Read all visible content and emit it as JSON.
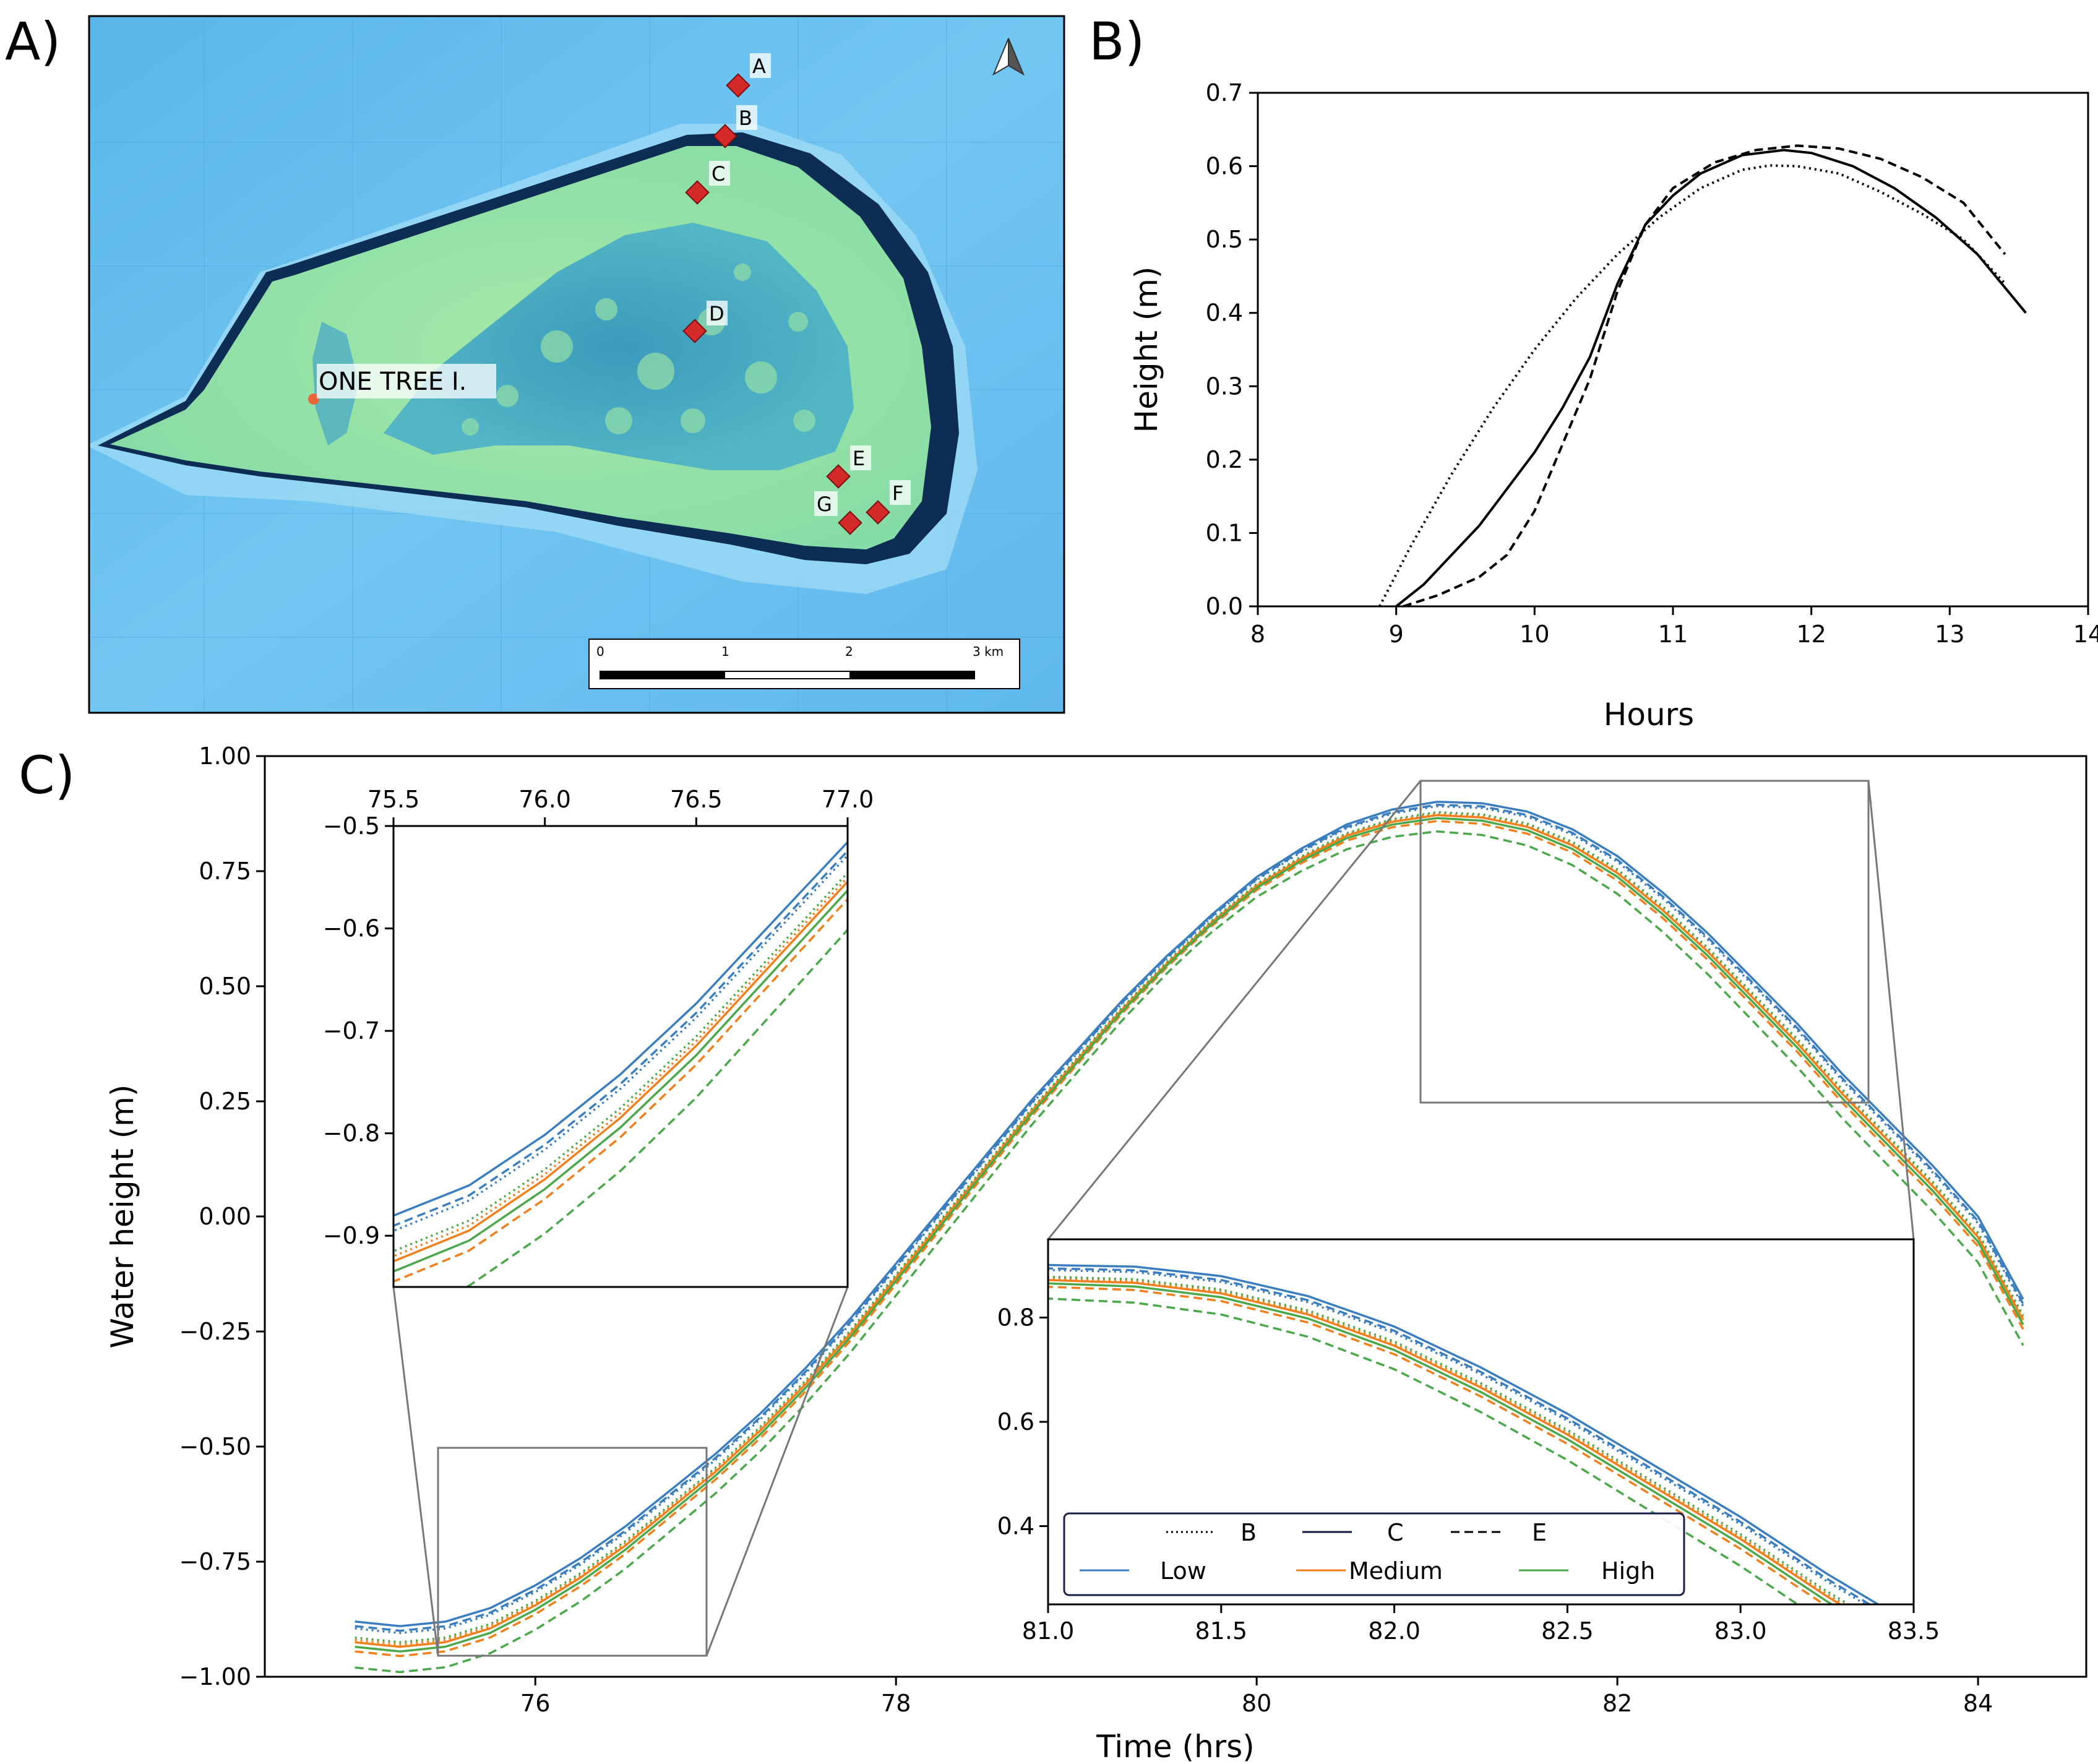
{
  "panel_labels": {
    "a": "A)",
    "b": "B)",
    "c": "C)"
  },
  "map": {
    "island_label": "ONE TREE I.",
    "sites": [
      "A",
      "B",
      "C",
      "D",
      "E",
      "F",
      "G"
    ],
    "north_arrow": "north-arrow-icon",
    "scale_bar": {
      "ticks": [
        "0",
        "1",
        "2",
        "3 km"
      ]
    },
    "colors": {
      "ocean": "#6ec3f0",
      "reef_flat": "#8fe0a0",
      "lagoon": "#3aa0c8",
      "reef_edge": "#0d2d55",
      "site_marker": "#d42a2a",
      "island": "#e8663a"
    }
  },
  "chart_data": [
    {
      "id": "B",
      "type": "line",
      "xlabel": "Hours",
      "ylabel": "Height (m)",
      "xlim": [
        8,
        14
      ],
      "ylim": [
        0,
        0.7
      ],
      "xticks": [
        "8",
        "9",
        "10",
        "11",
        "12",
        "13",
        "14"
      ],
      "yticks": [
        "0.0",
        "0.1",
        "0.2",
        "0.3",
        "0.4",
        "0.5",
        "0.6",
        "0.7"
      ],
      "series": [
        {
          "style": "solid",
          "x": [
            9.0,
            9.2,
            9.4,
            9.6,
            9.8,
            10.0,
            10.2,
            10.4,
            10.6,
            10.8,
            11.0,
            11.2,
            11.5,
            11.8,
            12.0,
            12.3,
            12.6,
            12.9,
            13.2,
            13.55
          ],
          "y": [
            0.0,
            0.03,
            0.07,
            0.11,
            0.16,
            0.21,
            0.27,
            0.34,
            0.44,
            0.52,
            0.56,
            0.59,
            0.615,
            0.622,
            0.618,
            0.6,
            0.57,
            0.53,
            0.48,
            0.4
          ]
        },
        {
          "style": "dashed",
          "x": [
            9.05,
            9.3,
            9.6,
            9.8,
            10.0,
            10.2,
            10.4,
            10.6,
            10.8,
            11.0,
            11.3,
            11.6,
            11.9,
            12.2,
            12.5,
            12.8,
            13.1,
            13.4
          ],
          "y": [
            0.0,
            0.015,
            0.04,
            0.07,
            0.13,
            0.22,
            0.31,
            0.43,
            0.52,
            0.57,
            0.605,
            0.622,
            0.628,
            0.624,
            0.61,
            0.585,
            0.55,
            0.48
          ]
        },
        {
          "style": "dotted",
          "x": [
            8.88,
            9.1,
            9.4,
            9.7,
            10.0,
            10.3,
            10.6,
            10.9,
            11.2,
            11.5,
            11.7,
            11.9,
            12.2,
            12.5,
            12.8,
            13.1,
            13.4
          ],
          "y": [
            0.0,
            0.08,
            0.18,
            0.27,
            0.35,
            0.42,
            0.48,
            0.53,
            0.57,
            0.595,
            0.601,
            0.6,
            0.59,
            0.565,
            0.535,
            0.5,
            0.44
          ]
        }
      ]
    },
    {
      "id": "C",
      "type": "line",
      "xlabel": "Time (hrs)",
      "ylabel": "Water height (m)",
      "xlim": [
        74.5,
        84.6
      ],
      "ylim": [
        -1.0,
        1.0
      ],
      "xticks": [
        "76",
        "78",
        "80",
        "82",
        "84"
      ],
      "yticks": [
        "−1.00",
        "−0.75",
        "−0.50",
        "−0.25",
        "0.00",
        "0.25",
        "0.50",
        "0.75",
        "1.00"
      ],
      "legend": {
        "placement": "lower-left of lower-right inset",
        "styles": [
          "B",
          "C",
          "E"
        ],
        "cases": [
          "Low",
          "Medium",
          "High"
        ]
      },
      "case_colors": {
        "Low": "#3a7ebf",
        "Medium": "#f07f1c",
        "High": "#4aa84a"
      },
      "base_curve": {
        "x": [
          75.0,
          75.25,
          75.5,
          75.75,
          76.0,
          76.25,
          76.5,
          76.75,
          77.0,
          77.25,
          77.5,
          77.75,
          78.0,
          78.25,
          78.5,
          78.75,
          79.0,
          79.25,
          79.5,
          79.75,
          80.0,
          80.25,
          80.5,
          80.75,
          81.0,
          81.25,
          81.5,
          81.75,
          82.0,
          82.25,
          82.5,
          82.75,
          83.0,
          83.25,
          83.5,
          83.75,
          84.0,
          84.25
        ],
        "y": [
          -0.92,
          -0.93,
          -0.92,
          -0.89,
          -0.84,
          -0.78,
          -0.71,
          -0.63,
          -0.55,
          -0.46,
          -0.36,
          -0.25,
          -0.13,
          -0.01,
          0.11,
          0.23,
          0.34,
          0.45,
          0.55,
          0.64,
          0.72,
          0.78,
          0.83,
          0.86,
          0.875,
          0.87,
          0.85,
          0.81,
          0.75,
          0.67,
          0.58,
          0.48,
          0.38,
          0.27,
          0.17,
          0.07,
          -0.04,
          -0.22
        ]
      },
      "series": [
        {
          "case": "Low",
          "site": "B",
          "style": "dotted",
          "offset": 0.025
        },
        {
          "case": "Low",
          "site": "C",
          "style": "solid",
          "offset": 0.04
        },
        {
          "case": "Low",
          "site": "E",
          "style": "dashed",
          "offset": 0.03
        },
        {
          "case": "Medium",
          "site": "B",
          "style": "dotted",
          "offset": 0.0
        },
        {
          "case": "Medium",
          "site": "C",
          "style": "solid",
          "offset": -0.005
        },
        {
          "case": "Medium",
          "site": "E",
          "style": "dashed",
          "offset": -0.025
        },
        {
          "case": "High",
          "site": "B",
          "style": "dotted",
          "offset": 0.005
        },
        {
          "case": "High",
          "site": "C",
          "style": "solid",
          "offset": -0.015
        },
        {
          "case": "High",
          "site": "E",
          "style": "dashed",
          "offset": -0.06
        }
      ],
      "insets": [
        {
          "id": "C-inset-left",
          "xlim": [
            75.5,
            77.0
          ],
          "ylim": [
            -0.95,
            -0.5
          ],
          "xticks": [
            "75.5",
            "76.0",
            "76.5",
            "77.0"
          ],
          "yticks": [
            "−0.9",
            "−0.8",
            "−0.7",
            "−0.6",
            "−0.5"
          ]
        },
        {
          "id": "C-inset-right",
          "xlim": [
            81.0,
            83.5
          ],
          "ylim": [
            0.25,
            0.95
          ],
          "xticks": [
            "81.0",
            "81.5",
            "82.0",
            "82.5",
            "83.0",
            "83.5"
          ],
          "yticks": [
            "0.4",
            "0.6",
            "0.8"
          ]
        }
      ]
    }
  ]
}
